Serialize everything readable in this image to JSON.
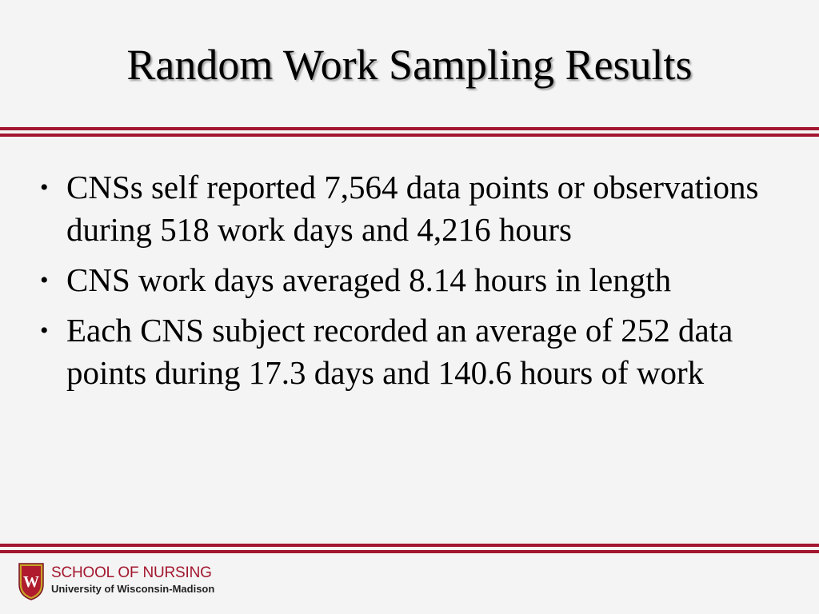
{
  "slide": {
    "title": "Random Work Sampling Results",
    "bullets": [
      {
        "marker": "•",
        "text": "CNSs self reported 7,564 data points or observations during 518 work days and 4,216 hours"
      },
      {
        "marker": "•",
        "text": "CNS work days averaged 8.14 hours in length"
      },
      {
        "marker": "•",
        "text": "Each CNS subject recorded an average of 252 data points during 17.3 days and 140.6 hours of work"
      }
    ]
  },
  "footer": {
    "logo_icon": "uw-crest-icon",
    "logo_letter": "W",
    "school": "SCHOOL OF NURSING",
    "university": "University of Wisconsin-Madison"
  },
  "colors": {
    "accent": "#a3162f",
    "background": "#f4f4f4"
  }
}
